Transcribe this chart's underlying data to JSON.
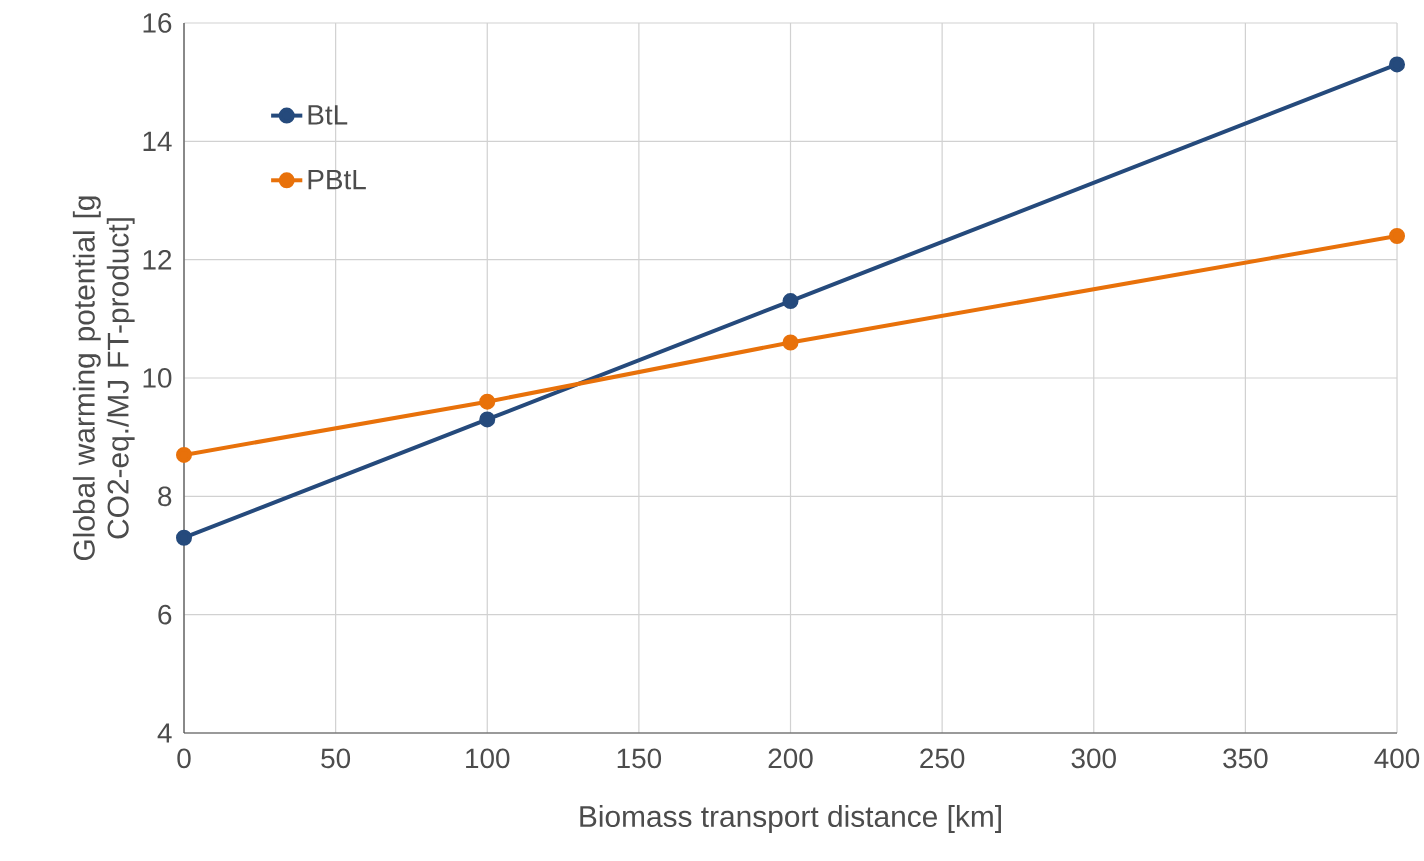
{
  "chart_data": {
    "type": "line",
    "xlabel": "Biomass transport distance [km]",
    "ylabel": "Global warming potential [g CO2-eq./MJ FT-product]",
    "x": [
      0,
      100,
      200,
      400
    ],
    "series": [
      {
        "name": "BtL",
        "color": "#254a7c",
        "values": [
          7.3,
          9.3,
          11.3,
          15.3
        ]
      },
      {
        "name": "PBtL",
        "color": "#e8710a",
        "values": [
          8.7,
          9.6,
          10.6,
          12.4
        ]
      }
    ],
    "xlim": [
      0,
      400
    ],
    "xticks": [
      0,
      50,
      100,
      150,
      200,
      250,
      300,
      350,
      400
    ],
    "ylim": [
      4,
      16
    ],
    "yticks": [
      4,
      6,
      8,
      10,
      12,
      14,
      16
    ],
    "grid": true,
    "legend": "top left",
    "marker": "circle",
    "line_style": "solid"
  }
}
